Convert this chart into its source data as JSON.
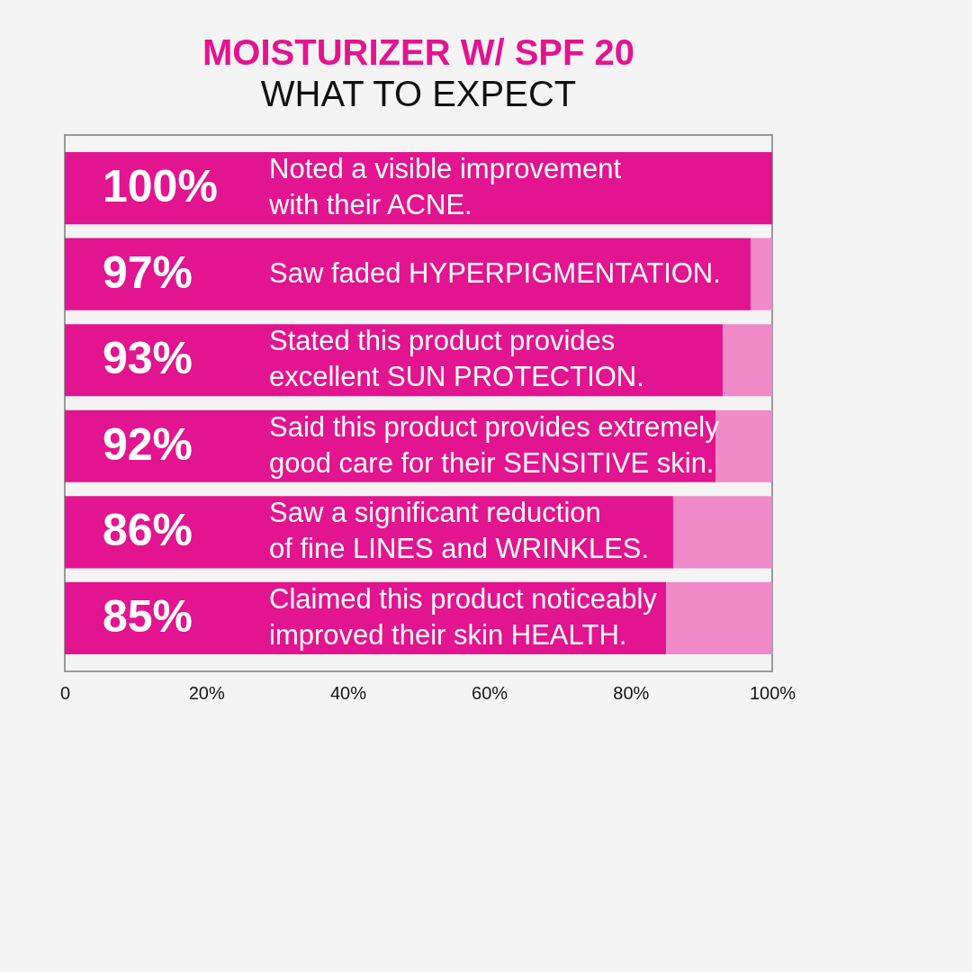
{
  "chart_data": {
    "type": "bar",
    "orientation": "horizontal",
    "stacked": true,
    "title": "MOISTURIZER W/ SPF 20",
    "subtitle": "WHAT TO EXPECT",
    "categories": [
      "Noted a visible improvement\nwith their ACNE.",
      "Saw faded HYPERPIGMENTATION.",
      "Stated this product provides\nexcellent SUN PROTECTION.",
      "Said this product provides extremely\ngood care for their SENSITIVE skin.",
      "Saw a significant reduction\nof fine LINES and WRINKLES.",
      "Claimed this product noticeably\nimproved their skin HEALTH."
    ],
    "series": [
      {
        "color": "#e3148f",
        "values": [
          100,
          97,
          93,
          92,
          86,
          85
        ],
        "value_labels": [
          "100%",
          "97%",
          "93%",
          "92%",
          "86%",
          "85%"
        ]
      },
      {
        "color": "#f08ac8",
        "values": [
          0,
          3,
          7,
          8,
          14,
          15
        ]
      }
    ],
    "xlim": [
      0,
      100
    ],
    "xticks": [
      {
        "value": 0,
        "label": "0"
      },
      {
        "value": 20,
        "label": "20%"
      },
      {
        "value": 40,
        "label": "40%"
      },
      {
        "value": 60,
        "label": "60%"
      },
      {
        "value": 80,
        "label": "80%"
      },
      {
        "value": 100,
        "label": "100%"
      }
    ]
  }
}
